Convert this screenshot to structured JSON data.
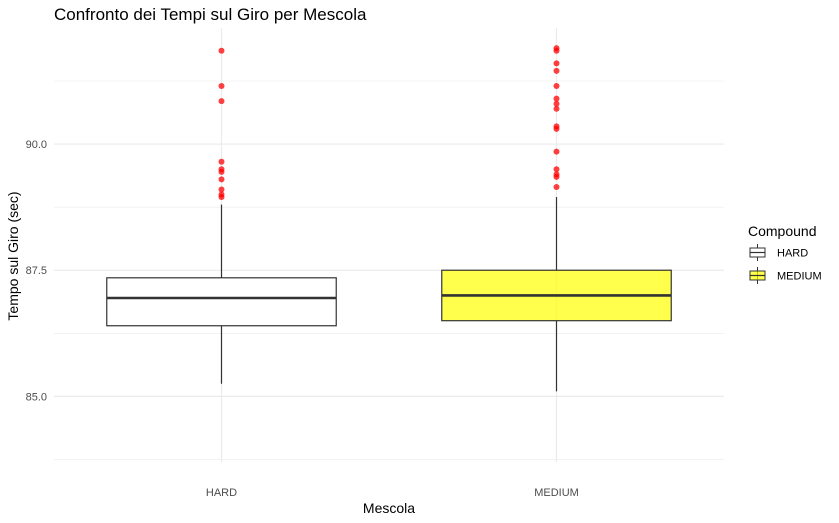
{
  "chart_data": {
    "type": "boxplot",
    "title": "Confronto dei Tempi sul Giro per Mescola",
    "xlabel": "Mescola",
    "ylabel": "Tempo sul Giro (sec)",
    "categories": [
      "HARD",
      "MEDIUM"
    ],
    "ylim": [
      83.7,
      92.3
    ],
    "y_major_ticks": [
      85.0,
      87.5,
      90.0
    ],
    "y_minor_ticks": [
      83.75,
      86.25,
      88.75,
      91.25
    ],
    "y_tick_labels": [
      "85.0",
      "87.5",
      "90.0"
    ],
    "grid": true,
    "legend": {
      "title": "Compound",
      "placement": "right",
      "entries": [
        {
          "label": "HARD",
          "fill": "#ffffff"
        },
        {
          "label": "MEDIUM",
          "fill": "#ffff00"
        }
      ]
    },
    "series": [
      {
        "category": "HARD",
        "fill": "#ffffff",
        "whisker_low": 85.25,
        "q1": 86.4,
        "median": 86.95,
        "q3": 87.35,
        "whisker_high": 88.8,
        "outliers": [
          91.85,
          91.15,
          90.85,
          89.65,
          89.5,
          89.45,
          89.3,
          89.1,
          89.0,
          88.95
        ]
      },
      {
        "category": "MEDIUM",
        "fill": "#ffff00",
        "whisker_low": 85.1,
        "q1": 86.5,
        "median": 87.0,
        "q3": 87.5,
        "whisker_high": 88.95,
        "outliers": [
          91.9,
          91.85,
          91.6,
          91.45,
          91.15,
          90.9,
          90.8,
          90.7,
          90.35,
          90.3,
          89.85,
          89.5,
          89.4,
          89.35,
          89.15
        ]
      }
    ],
    "colors": {
      "outlier": "#ff0000",
      "grid": "#ebebeb",
      "box_stroke": "#333333"
    }
  }
}
